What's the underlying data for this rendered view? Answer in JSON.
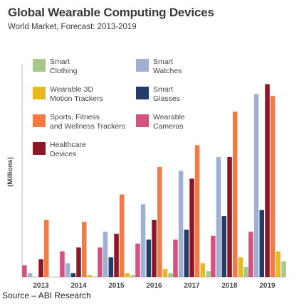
{
  "title": "Global Wearable Computing Devices",
  "subtitle": "World Market, Forecast: 2013-2019",
  "source": "Source – ABI Research",
  "chart_data": {
    "type": "bar",
    "ylabel": "(Millions)",
    "xlabel": "",
    "categories": [
      "2013",
      "2014",
      "2015",
      "2016",
      "2017",
      "2018",
      "2019"
    ],
    "ylim": [
      0,
      100
    ],
    "grid": false,
    "legend_placement": "top-left",
    "series": [
      {
        "name": "Smart Clothing",
        "color": "#a8c88a",
        "values": [
          0,
          0,
          1,
          2,
          3,
          5,
          8
        ]
      },
      {
        "name": "Wearable 3D Motion Trackers",
        "color": "#e8b722",
        "values": [
          0,
          1,
          2,
          4,
          7,
          10,
          13
        ]
      },
      {
        "name": "Sports, Fitness and Wellness Trackers",
        "color": "#f47a45",
        "values": [
          29,
          28,
          42,
          56,
          67,
          84,
          92
        ]
      },
      {
        "name": "Healthcare Devices",
        "color": "#8e1525",
        "values": [
          9,
          15,
          22,
          29,
          50,
          61,
          98
        ]
      },
      {
        "name": "Smart Watches",
        "color": "#9fb0d2",
        "values": [
          2,
          7,
          23,
          37,
          54,
          61,
          93
        ]
      },
      {
        "name": "Smart Glasses",
        "color": "#223c6b",
        "values": [
          0,
          2,
          10,
          19,
          24,
          31,
          34
        ]
      },
      {
        "name": "Wearable Cameras",
        "color": "#d45180",
        "values": [
          6,
          13,
          15,
          17,
          19,
          21,
          23
        ]
      }
    ],
    "bar_order": [
      "Wearable Cameras",
      "Smart Watches",
      "Smart Glasses",
      "Healthcare Devices",
      "Sports, Fitness and Wellness Trackers",
      "Wearable 3D Motion Trackers",
      "Smart Clothing"
    ]
  },
  "legend": [
    {
      "label": "Smart Clothing",
      "color": "#a8c88a"
    },
    {
      "label": "Smart Watches",
      "color": "#9fb0d2"
    },
    {
      "label": "Wearable 3D Motion Trackers",
      "color": "#e8b722"
    },
    {
      "label": "Smart Glasses",
      "color": "#223c6b"
    },
    {
      "label": "Sports, Fitness and Wellness Trackers",
      "color": "#f47a45"
    },
    {
      "label": "Wearable Cameras",
      "color": "#d45180"
    },
    {
      "label": "Healthcare Devices",
      "color": "#8e1525"
    }
  ]
}
